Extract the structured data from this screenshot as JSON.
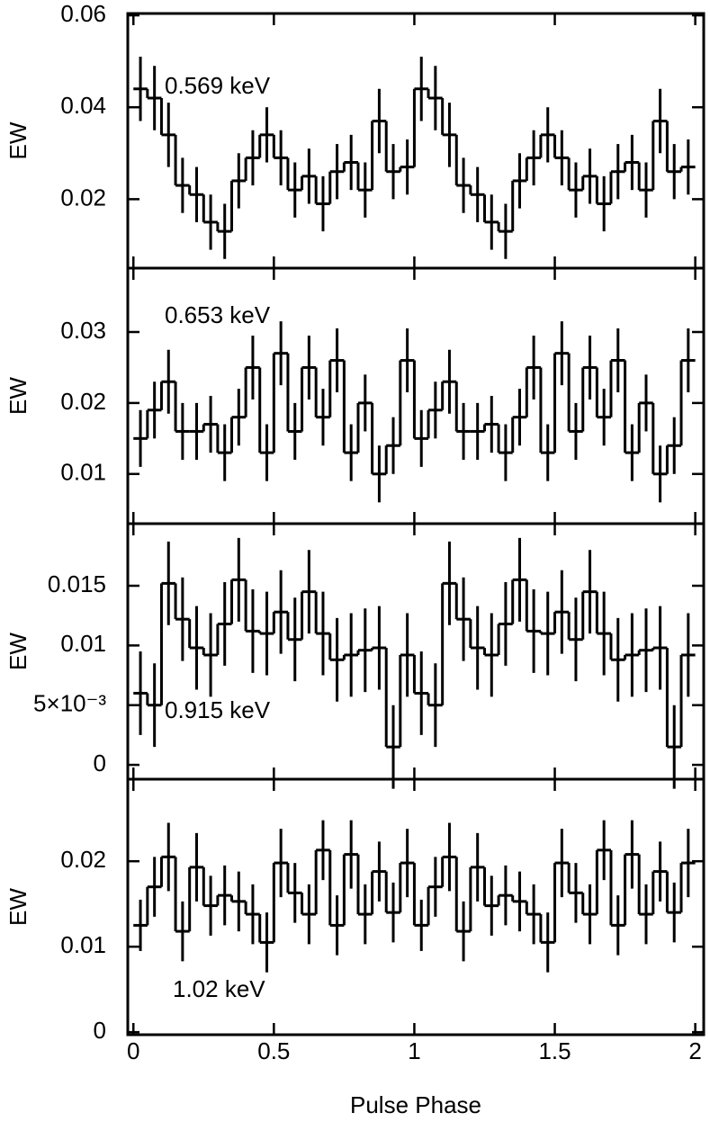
{
  "chart_data": [
    {
      "type": "step",
      "ylabel": "EW",
      "annotation": "0.569 keV",
      "x": [
        0.025,
        0.075,
        0.125,
        0.175,
        0.225,
        0.275,
        0.325,
        0.375,
        0.425,
        0.475,
        0.525,
        0.575,
        0.625,
        0.675,
        0.725,
        0.775,
        0.825,
        0.875,
        0.925,
        0.975,
        1.025,
        1.075,
        1.125,
        1.175,
        1.225,
        1.275,
        1.325,
        1.375,
        1.425,
        1.475,
        1.525,
        1.575,
        1.625,
        1.675,
        1.725,
        1.775,
        1.825,
        1.875,
        1.925,
        1.975
      ],
      "values": [
        0.044,
        0.042,
        0.034,
        0.023,
        0.021,
        0.015,
        0.013,
        0.024,
        0.029,
        0.034,
        0.029,
        0.022,
        0.025,
        0.019,
        0.026,
        0.028,
        0.022,
        0.037,
        0.026,
        0.027,
        0.044,
        0.042,
        0.034,
        0.023,
        0.021,
        0.015,
        0.013,
        0.024,
        0.029,
        0.034,
        0.029,
        0.022,
        0.025,
        0.019,
        0.026,
        0.028,
        0.022,
        0.037,
        0.026,
        0.027
      ],
      "errors": [
        0.007,
        0.007,
        0.007,
        0.006,
        0.006,
        0.006,
        0.006,
        0.006,
        0.006,
        0.006,
        0.006,
        0.006,
        0.006,
        0.006,
        0.006,
        0.006,
        0.006,
        0.007,
        0.006,
        0.006,
        0.007,
        0.007,
        0.007,
        0.006,
        0.006,
        0.006,
        0.006,
        0.006,
        0.006,
        0.006,
        0.006,
        0.006,
        0.006,
        0.006,
        0.006,
        0.006,
        0.006,
        0.007,
        0.006,
        0.006
      ],
      "xlim": [
        -0.02,
        2.03
      ],
      "ylim": [
        0.005,
        0.0604
      ],
      "yticks": [
        0.02,
        0.04,
        0.06
      ],
      "color": "#000000"
    },
    {
      "type": "step",
      "ylabel": "EW",
      "annotation": "0.653 keV",
      "x": [
        0.025,
        0.075,
        0.125,
        0.175,
        0.225,
        0.275,
        0.325,
        0.375,
        0.425,
        0.475,
        0.525,
        0.575,
        0.625,
        0.675,
        0.725,
        0.775,
        0.825,
        0.875,
        0.925,
        0.975,
        1.025,
        1.075,
        1.125,
        1.175,
        1.225,
        1.275,
        1.325,
        1.375,
        1.425,
        1.475,
        1.525,
        1.575,
        1.625,
        1.675,
        1.725,
        1.775,
        1.825,
        1.875,
        1.925,
        1.975
      ],
      "values": [
        0.015,
        0.019,
        0.023,
        0.016,
        0.016,
        0.017,
        0.013,
        0.018,
        0.025,
        0.013,
        0.027,
        0.016,
        0.025,
        0.018,
        0.026,
        0.013,
        0.02,
        0.01,
        0.014,
        0.026,
        0.015,
        0.019,
        0.023,
        0.016,
        0.016,
        0.017,
        0.013,
        0.018,
        0.025,
        0.013,
        0.027,
        0.016,
        0.025,
        0.018,
        0.026,
        0.013,
        0.02,
        0.01,
        0.014,
        0.026
      ],
      "errors": [
        0.004,
        0.004,
        0.0045,
        0.004,
        0.004,
        0.004,
        0.004,
        0.004,
        0.0045,
        0.004,
        0.0045,
        0.004,
        0.0045,
        0.004,
        0.0045,
        0.004,
        0.004,
        0.004,
        0.004,
        0.0045,
        0.004,
        0.004,
        0.0045,
        0.004,
        0.004,
        0.004,
        0.004,
        0.004,
        0.0045,
        0.004,
        0.0045,
        0.004,
        0.0045,
        0.004,
        0.0045,
        0.004,
        0.004,
        0.004,
        0.004,
        0.0045
      ],
      "xlim": [
        -0.02,
        2.03
      ],
      "ylim": [
        0.003,
        0.039
      ],
      "yticks": [
        0.01,
        0.02,
        0.03
      ],
      "color": "#000000"
    },
    {
      "type": "step",
      "ylabel": "EW",
      "annotation": "0.915 keV",
      "x": [
        0.025,
        0.075,
        0.125,
        0.175,
        0.225,
        0.275,
        0.325,
        0.375,
        0.425,
        0.475,
        0.525,
        0.575,
        0.625,
        0.675,
        0.725,
        0.775,
        0.825,
        0.875,
        0.925,
        0.975,
        1.025,
        1.075,
        1.125,
        1.175,
        1.225,
        1.275,
        1.325,
        1.375,
        1.425,
        1.475,
        1.525,
        1.575,
        1.625,
        1.675,
        1.725,
        1.775,
        1.825,
        1.875,
        1.925,
        1.975
      ],
      "values": [
        0.006,
        0.005,
        0.0152,
        0.0122,
        0.0098,
        0.0092,
        0.0118,
        0.0155,
        0.0112,
        0.011,
        0.0128,
        0.0105,
        0.0145,
        0.011,
        0.0088,
        0.0092,
        0.0096,
        0.0098,
        0.0015,
        0.0092,
        0.006,
        0.005,
        0.0152,
        0.0122,
        0.0098,
        0.0092,
        0.0118,
        0.0155,
        0.0112,
        0.011,
        0.0128,
        0.0105,
        0.0145,
        0.011,
        0.0088,
        0.0092,
        0.0096,
        0.0098,
        0.0015,
        0.0092
      ],
      "errors": [
        0.0035,
        0.0035,
        0.0035,
        0.0035,
        0.0035,
        0.0035,
        0.0035,
        0.0035,
        0.0035,
        0.0035,
        0.0035,
        0.0035,
        0.0035,
        0.0035,
        0.0035,
        0.0035,
        0.0035,
        0.0035,
        0.0035,
        0.0035,
        0.0035,
        0.0035,
        0.0035,
        0.0035,
        0.0035,
        0.0035,
        0.0035,
        0.0035,
        0.0035,
        0.0035,
        0.0035,
        0.0035,
        0.0035,
        0.0035,
        0.0035,
        0.0035,
        0.0035,
        0.0035,
        0.0035,
        0.0035
      ],
      "xlim": [
        -0.02,
        2.03
      ],
      "ylim": [
        -0.0012,
        0.0202
      ],
      "yticks": [
        0,
        {
          "value": 0.005,
          "label": "5×10⁻³"
        },
        0.01,
        0.015
      ],
      "color": "#000000"
    },
    {
      "type": "step",
      "ylabel": "EW",
      "annotation": "1.02 keV",
      "xlabel": "Pulse Phase",
      "x": [
        0.025,
        0.075,
        0.125,
        0.175,
        0.225,
        0.275,
        0.325,
        0.375,
        0.425,
        0.475,
        0.525,
        0.575,
        0.625,
        0.675,
        0.725,
        0.775,
        0.825,
        0.875,
        0.925,
        0.975,
        1.025,
        1.075,
        1.125,
        1.175,
        1.225,
        1.275,
        1.325,
        1.375,
        1.425,
        1.475,
        1.525,
        1.575,
        1.625,
        1.675,
        1.725,
        1.775,
        1.825,
        1.875,
        1.925,
        1.975
      ],
      "values": [
        0.0125,
        0.017,
        0.0205,
        0.0118,
        0.0193,
        0.0148,
        0.016,
        0.0153,
        0.0138,
        0.0105,
        0.0198,
        0.0163,
        0.0138,
        0.0213,
        0.0125,
        0.0208,
        0.0138,
        0.0188,
        0.014,
        0.0198,
        0.0125,
        0.017,
        0.0205,
        0.0118,
        0.0193,
        0.0148,
        0.016,
        0.0153,
        0.0138,
        0.0105,
        0.0198,
        0.0163,
        0.0138,
        0.0213,
        0.0125,
        0.0208,
        0.0138,
        0.0188,
        0.014,
        0.0198
      ],
      "errors": [
        0.003,
        0.0035,
        0.004,
        0.0035,
        0.004,
        0.0035,
        0.0035,
        0.0035,
        0.0035,
        0.0035,
        0.004,
        0.0035,
        0.0035,
        0.0035,
        0.0035,
        0.004,
        0.0035,
        0.0035,
        0.0035,
        0.004,
        0.003,
        0.0035,
        0.004,
        0.0035,
        0.004,
        0.0035,
        0.0035,
        0.0035,
        0.0035,
        0.0035,
        0.004,
        0.0035,
        0.0035,
        0.0035,
        0.0035,
        0.004,
        0.0035,
        0.0035,
        0.0035,
        0.004
      ],
      "xlim": [
        -0.02,
        2.03
      ],
      "ylim": [
        -0.0003,
        0.0296
      ],
      "yticks": [
        0,
        0.01,
        0.02
      ],
      "xticks": [
        0,
        0.5,
        1,
        1.5,
        2
      ],
      "color": "#000000"
    }
  ]
}
